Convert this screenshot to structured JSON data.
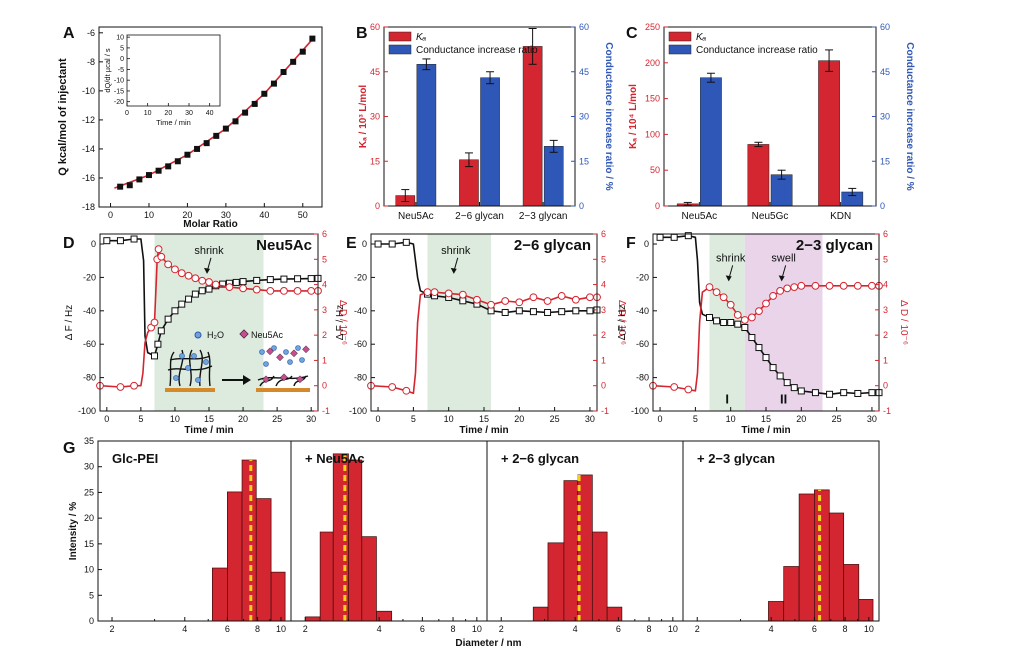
{
  "figure": {
    "panel_letters": [
      "A",
      "B",
      "C",
      "D",
      "E",
      "F",
      "G"
    ]
  },
  "colors": {
    "red": "#d42630",
    "blue": "#2e57b8",
    "teal": "#1f8b8b",
    "green_shade": "#dcebdd",
    "pink_shade": "#ead4ea",
    "yellow": "#f2d318",
    "black": "#111111",
    "orange": "#d48a2a",
    "pink_marker": "#c64d8f"
  },
  "chart_data": [
    {
      "id": "A",
      "type": "scatter",
      "xlabel": "Molar Ratio",
      "ylabel": "Q kcal/mol of injectant",
      "xlim": [
        -3,
        55
      ],
      "ylim": [
        -18,
        -5.6
      ],
      "xticks": [
        0,
        10,
        20,
        30,
        40,
        50
      ],
      "yticks": [
        -18,
        -16,
        -14,
        -12,
        -10,
        -8,
        -6
      ],
      "series": [
        {
          "marker": "square",
          "color": "#111111",
          "x": [
            2.5,
            5.0,
            7.5,
            10.0,
            12.5,
            15.0,
            17.5,
            20.0,
            22.5,
            25.0,
            27.5,
            30.0,
            32.5,
            35.0,
            37.5,
            40.0,
            42.5,
            45.0,
            47.5,
            50.0,
            52.5
          ],
          "y": [
            -16.6,
            -16.5,
            -16.1,
            -15.8,
            -15.5,
            -15.2,
            -14.85,
            -14.4,
            -14.0,
            -13.6,
            -13.1,
            -12.6,
            -12.1,
            -11.5,
            -10.9,
            -10.2,
            -9.5,
            -8.7,
            -8.0,
            -7.3,
            -6.4
          ]
        },
        {
          "line": true,
          "color": "#d42630",
          "x": [
            1,
            10,
            20,
            30,
            40,
            53
          ],
          "y": [
            -16.7,
            -15.8,
            -14.4,
            -12.6,
            -10.2,
            -6.3
          ]
        }
      ],
      "inset": {
        "xlabel": "Time / min",
        "ylabel": "dQ/dt µcal / s",
        "xlim": [
          0,
          45
        ],
        "ylim": [
          -22,
          11
        ],
        "xticks": [
          0,
          10,
          20,
          30,
          40
        ],
        "yticks": [
          -20,
          -15,
          -10,
          -5,
          0,
          5,
          10
        ],
        "spikes_start": 2.5,
        "spikes_end": 41.5,
        "spikes_count": 21,
        "spike_min_first": -20,
        "spike_min_last": -13.5,
        "baseline": 10
      }
    },
    {
      "id": "B",
      "type": "bar",
      "categories": [
        "Neu5Ac",
        "2−6 glycan",
        "2−3 glycan"
      ],
      "ylabel_left": "Kₐ / 10³ L/mol",
      "ylabel_right": "Conductance increase ratio / %",
      "ylim_left": [
        0,
        60
      ],
      "ylim_right": [
        0,
        60
      ],
      "yticks": [
        0,
        15,
        30,
        45,
        60
      ],
      "series": [
        {
          "name": "Kₐ",
          "axis": "left",
          "color": "#d42630",
          "values": [
            3.5,
            15.5,
            53.5
          ],
          "errors": [
            2,
            2.3,
            6
          ]
        },
        {
          "name": "Conductance increase ratio",
          "axis": "right",
          "color": "#2e57b8",
          "values": [
            47.5,
            43,
            20
          ],
          "errors": [
            1.8,
            2,
            2
          ]
        }
      ]
    },
    {
      "id": "C",
      "type": "bar",
      "categories": [
        "Neu5Ac",
        "Neu5Gc",
        "KDN"
      ],
      "ylabel_left": "Kₐ / 10⁴ L/mol",
      "ylabel_right": "Conductance increase ratio / %",
      "ylim_left": [
        0,
        250
      ],
      "ylim_right": [
        0,
        60
      ],
      "yticks_left": [
        0,
        50,
        100,
        150,
        200,
        250
      ],
      "yticks_right": [
        0,
        15,
        30,
        45,
        60
      ],
      "series": [
        {
          "name": "Kₐ",
          "axis": "left",
          "color": "#d42630",
          "values": [
            3,
            86,
            203
          ],
          "errors": [
            2,
            3,
            15
          ]
        },
        {
          "name": "Conductance increase ratio",
          "axis": "right",
          "color": "#2e57b8",
          "values": [
            43,
            10.5,
            4.7
          ],
          "errors": [
            1.5,
            1.5,
            1.2
          ]
        }
      ]
    },
    {
      "id": "D",
      "type": "line",
      "title": "Neu5Ac",
      "xlabel": "Time / min",
      "ylabel_left": "Δ F / Hz",
      "ylabel_right": "Δ D / 10⁻⁶",
      "xlim": [
        -1,
        31
      ],
      "ylim_left": [
        -100,
        6
      ],
      "ylim_right": [
        -1,
        6
      ],
      "xticks": [
        0,
        5,
        10,
        15,
        20,
        25,
        30
      ],
      "yticks_left": [
        -100,
        -80,
        -60,
        -40,
        -20,
        0
      ],
      "yticks_right": [
        -1,
        0,
        1,
        2,
        3,
        4,
        5,
        6
      ],
      "shade": [
        {
          "from": 7,
          "to": 23,
          "color": "#dcebdd"
        }
      ],
      "annotations": [
        {
          "text": "shrink",
          "x": 15,
          "y": 4.9
        }
      ],
      "legend_labels": [
        "H₂O",
        "Neu5Ac"
      ],
      "series": [
        {
          "name": "ΔF",
          "axis": "left",
          "color": "#111111",
          "marker": "square",
          "x": [
            0,
            2,
            4,
            5.0,
            5.4,
            5.6,
            6,
            7,
            7.5,
            8,
            9,
            10,
            11,
            12,
            13,
            14,
            15,
            16,
            17,
            18,
            19,
            20,
            22,
            24,
            26,
            28,
            30,
            31
          ],
          "y": [
            2,
            2,
            3,
            3,
            -10,
            -55,
            -65,
            -67,
            -60,
            -52,
            -45,
            -40,
            -36,
            -33,
            -30,
            -28,
            -27,
            -25,
            -24,
            -23.5,
            -23,
            -22.5,
            -21.8,
            -21.3,
            -21,
            -20.8,
            -20.7,
            -20.6
          ]
        },
        {
          "name": "ΔD",
          "axis": "right",
          "color": "#d42630",
          "marker": "circle",
          "x": [
            -1,
            2,
            4,
            5.0,
            5.3,
            5.6,
            6,
            6.5,
            7,
            7.4,
            7.6,
            8,
            9,
            10,
            11,
            12,
            13,
            14,
            15,
            16,
            18,
            20,
            22,
            24,
            26,
            28,
            30,
            31
          ],
          "y": [
            0,
            -0.05,
            0,
            0,
            0.5,
            1.7,
            2.1,
            2.3,
            2.5,
            5.0,
            5.4,
            5.1,
            4.8,
            4.6,
            4.45,
            4.35,
            4.25,
            4.15,
            4.1,
            4.0,
            3.9,
            3.85,
            3.8,
            3.75,
            3.75,
            3.75,
            3.75,
            3.75
          ]
        }
      ]
    },
    {
      "id": "E",
      "type": "line",
      "title": "2−6 glycan",
      "xlabel": "Time / min",
      "ylabel_left": "Δ F / Hz",
      "ylabel_right": "Δ D / 10⁻⁶",
      "xlim": [
        -1,
        31
      ],
      "ylim_left": [
        -100,
        6
      ],
      "ylim_right": [
        -1,
        6
      ],
      "xticks": [
        0,
        5,
        10,
        15,
        20,
        25,
        30
      ],
      "yticks_left": [
        -100,
        -80,
        -60,
        -40,
        -20,
        0
      ],
      "yticks_right": [
        -1,
        0,
        1,
        2,
        3,
        4,
        5,
        6
      ],
      "shade": [
        {
          "from": 7,
          "to": 16,
          "color": "#dcebdd"
        }
      ],
      "annotations": [
        {
          "text": "shrink",
          "x": 11,
          "y": 4.9
        }
      ],
      "series": [
        {
          "name": "ΔF",
          "axis": "left",
          "color": "#111111",
          "marker": "square",
          "x": [
            0,
            2,
            4,
            5.0,
            5.3,
            5.6,
            6,
            7,
            8,
            10,
            12,
            14,
            16,
            18,
            20,
            22,
            24,
            26,
            28,
            30,
            31
          ],
          "y": [
            0,
            0,
            1,
            0,
            -10,
            -20,
            -28,
            -30,
            -31,
            -32,
            -34,
            -36,
            -40,
            -41,
            -40,
            -40.5,
            -41,
            -40.5,
            -40,
            -40,
            -39.5
          ]
        },
        {
          "name": "ΔD",
          "axis": "right",
          "color": "#d42630",
          "marker": "circle",
          "x": [
            -1,
            2,
            4,
            5.0,
            5.3,
            5.6,
            6,
            7,
            8,
            10,
            12,
            14,
            16,
            18,
            20,
            22,
            24,
            26,
            28,
            30,
            31
          ],
          "y": [
            0,
            -0.05,
            -0.2,
            -0.3,
            0.5,
            2.5,
            3.6,
            3.7,
            3.7,
            3.65,
            3.6,
            3.4,
            3.2,
            3.35,
            3.3,
            3.5,
            3.35,
            3.55,
            3.4,
            3.5,
            3.5
          ]
        }
      ]
    },
    {
      "id": "F",
      "type": "line",
      "title": "2−3 glycan",
      "xlabel": "Time / min",
      "ylabel_left": "Δ F / Hz",
      "ylabel_right": "Δ D / 10⁻⁶",
      "xlim": [
        -1,
        31
      ],
      "ylim_left": [
        -100,
        6
      ],
      "ylim_right": [
        -1,
        6
      ],
      "xticks": [
        0,
        5,
        10,
        15,
        20,
        25,
        30
      ],
      "yticks_left": [
        -100,
        -80,
        -60,
        -40,
        -20,
        0
      ],
      "yticks_right": [
        -1,
        0,
        1,
        2,
        3,
        4,
        5,
        6
      ],
      "shade": [
        {
          "from": 7,
          "to": 12,
          "color": "#dcebdd"
        },
        {
          "from": 12,
          "to": 23,
          "color": "#ead4ea"
        }
      ],
      "annotations": [
        {
          "text": "shrink",
          "x": 10,
          "y": 4.6
        },
        {
          "text": "swell",
          "x": 17.5,
          "y": 4.6
        },
        {
          "text": "I",
          "x": 9.5,
          "y": -0.7
        },
        {
          "text": "II",
          "x": 17.5,
          "y": -0.7
        }
      ],
      "series": [
        {
          "name": "ΔF",
          "axis": "left",
          "color": "#111111",
          "marker": "square",
          "x": [
            0,
            2,
            4,
            5.0,
            5.3,
            5.6,
            6,
            7,
            8,
            9,
            10,
            11,
            12,
            13,
            14,
            15,
            16,
            17,
            18,
            19,
            20,
            22,
            24,
            26,
            28,
            30,
            31
          ],
          "y": [
            4,
            4,
            5,
            4,
            -10,
            -35,
            -42,
            -44,
            -46,
            -47,
            -47,
            -48,
            -50,
            -56,
            -62,
            -68,
            -74,
            -79,
            -83,
            -86,
            -88,
            -89,
            -90,
            -89,
            -89.5,
            -89,
            -89
          ]
        },
        {
          "name": "ΔD",
          "axis": "right",
          "color": "#d42630",
          "marker": "circle",
          "x": [
            -1,
            2,
            4,
            5.0,
            5.3,
            5.6,
            6,
            7,
            8,
            9,
            10,
            11,
            12,
            13,
            14,
            15,
            16,
            17,
            18,
            19,
            20,
            22,
            24,
            26,
            28,
            30,
            31
          ],
          "y": [
            0,
            -0.05,
            -0.15,
            -0.2,
            0.5,
            2.5,
            3.7,
            3.9,
            3.7,
            3.5,
            3.2,
            2.8,
            2.6,
            2.7,
            2.95,
            3.25,
            3.55,
            3.75,
            3.85,
            3.9,
            3.95,
            3.95,
            3.95,
            3.95,
            3.95,
            3.95,
            3.95
          ]
        }
      ]
    },
    {
      "id": "G",
      "type": "bar",
      "xlabel": "Diameter / nm",
      "ylabel": "Intensity / %",
      "ylim": [
        0,
        35
      ],
      "yticks": [
        0,
        5,
        10,
        15,
        20,
        25,
        30,
        35
      ],
      "xscale": "log",
      "xlim": [
        1.75,
        11
      ],
      "xticks": [
        2,
        4,
        6,
        8,
        10
      ],
      "subplots": [
        {
          "label": "Glc-PEI",
          "mean": 7.5,
          "bins": [
            5.2,
            6.0,
            6.9,
            7.9,
            9.1,
            10.4
          ],
          "values": [
            10.3,
            25.1,
            31.3,
            23.8,
            9.5
          ]
        },
        {
          "label": "+ Neu5Ac",
          "mean": 2.9,
          "bins": [
            2.0,
            2.3,
            2.6,
            3.0,
            3.4,
            3.9,
            4.5
          ],
          "values": [
            0.8,
            17.3,
            32.5,
            31.3,
            16.4,
            1.9
          ]
        },
        {
          "label": "+ 2−6 glycan",
          "mean": 4.15,
          "bins": [
            2.7,
            3.1,
            3.6,
            4.1,
            4.7,
            5.4,
            6.2
          ],
          "values": [
            2.7,
            15.2,
            27.3,
            28.4,
            17.3,
            2.7
          ]
        },
        {
          "label": "+ 2−3 glycan",
          "mean": 6.3,
          "bins": [
            3.9,
            4.5,
            5.2,
            6.0,
            6.9,
            7.9,
            9.1,
            10.4
          ],
          "values": [
            3.8,
            10.6,
            24.7,
            25.5,
            21.0,
            11.0,
            4.2
          ]
        }
      ]
    }
  ]
}
